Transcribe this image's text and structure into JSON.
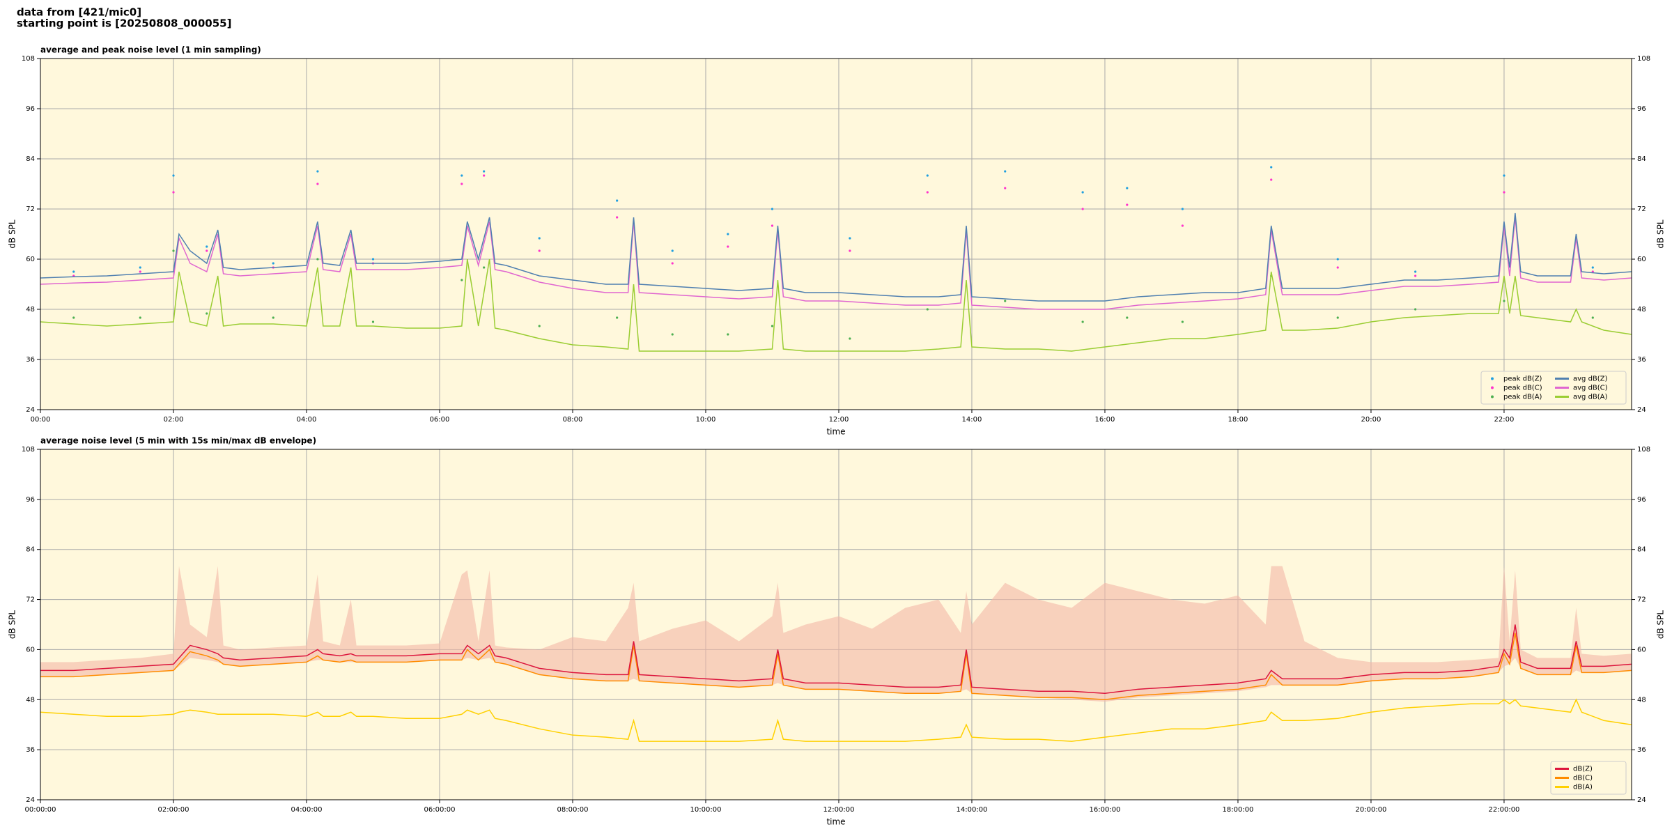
{
  "header": {
    "line1": "data from [421/mic0]",
    "line2": "starting point is [20250808_000055]"
  },
  "chart_data": [
    {
      "type": "line",
      "title": "average and peak noise level (1 min sampling)",
      "xlabel": "time",
      "ylabel": "dB SPL",
      "xlim": [
        "00:00",
        "23:55"
      ],
      "ylim": [
        24,
        108
      ],
      "xticks": [
        "00:00",
        "02:00",
        "04:00",
        "06:00",
        "08:00",
        "10:00",
        "12:00",
        "14:00",
        "16:00",
        "18:00",
        "20:00",
        "22:00"
      ],
      "yticks": [
        24,
        36,
        48,
        60,
        72,
        84,
        96,
        108
      ],
      "grid": true,
      "background": "#fff8dc",
      "legend": "lower right",
      "legend_columns": 2,
      "x": [
        "00:00",
        "00:30",
        "01:00",
        "01:30",
        "02:00",
        "02:05",
        "02:15",
        "02:30",
        "02:40",
        "02:45",
        "03:00",
        "03:30",
        "04:00",
        "04:10",
        "04:15",
        "04:30",
        "04:40",
        "04:45",
        "05:00",
        "05:30",
        "06:00",
        "06:20",
        "06:25",
        "06:35",
        "06:45",
        "06:50",
        "07:00",
        "07:30",
        "08:00",
        "08:30",
        "08:50",
        "08:55",
        "09:00",
        "09:30",
        "10:00",
        "10:30",
        "11:00",
        "11:05",
        "11:10",
        "11:30",
        "12:00",
        "12:30",
        "13:00",
        "13:30",
        "13:50",
        "13:55",
        "14:00",
        "14:30",
        "15:00",
        "15:30",
        "16:00",
        "16:30",
        "17:00",
        "17:30",
        "18:00",
        "18:25",
        "18:30",
        "18:40",
        "19:00",
        "19:30",
        "20:00",
        "20:30",
        "21:00",
        "21:30",
        "21:55",
        "22:00",
        "22:05",
        "22:10",
        "22:15",
        "22:30",
        "23:00",
        "23:05",
        "23:10",
        "23:30",
        "23:55"
      ],
      "series": [
        {
          "name": "peak dB(Z)",
          "kind": "scatter",
          "color": "#1f9fe0",
          "x": [
            "00:30",
            "01:30",
            "02:00",
            "02:30",
            "03:30",
            "04:10",
            "05:00",
            "06:20",
            "06:40",
            "07:30",
            "08:40",
            "09:30",
            "10:20",
            "11:00",
            "12:10",
            "13:20",
            "14:30",
            "15:40",
            "16:20",
            "17:10",
            "18:30",
            "19:30",
            "20:40",
            "22:00",
            "23:20"
          ],
          "values": [
            57,
            58,
            80,
            63,
            59,
            81,
            60,
            80,
            81,
            65,
            74,
            62,
            66,
            72,
            65,
            80,
            81,
            76,
            77,
            72,
            82,
            60,
            57,
            80,
            58
          ]
        },
        {
          "name": "peak dB(C)",
          "kind": "scatter",
          "color": "#ff33cc",
          "x": [
            "00:30",
            "01:30",
            "02:00",
            "02:30",
            "03:30",
            "04:10",
            "05:00",
            "06:20",
            "06:40",
            "07:30",
            "08:40",
            "09:30",
            "10:20",
            "11:00",
            "12:10",
            "13:20",
            "14:30",
            "15:40",
            "16:20",
            "17:10",
            "18:30",
            "19:30",
            "20:40",
            "22:00",
            "23:20"
          ],
          "values": [
            56,
            57,
            76,
            62,
            58,
            78,
            59,
            78,
            80,
            62,
            70,
            59,
            63,
            68,
            62,
            76,
            77,
            72,
            73,
            68,
            79,
            58,
            56,
            76,
            57
          ]
        },
        {
          "name": "peak dB(A)",
          "kind": "scatter",
          "color": "#4caf50",
          "x": [
            "00:30",
            "01:30",
            "02:00",
            "02:30",
            "03:30",
            "04:10",
            "05:00",
            "06:20",
            "06:40",
            "07:30",
            "08:40",
            "09:30",
            "10:20",
            "11:00",
            "12:10",
            "13:20",
            "14:30",
            "15:40",
            "16:20",
            "17:10",
            "18:30",
            "19:30",
            "20:40",
            "22:00",
            "23:20"
          ],
          "values": [
            46,
            46,
            62,
            47,
            46,
            60,
            45,
            55,
            58,
            44,
            46,
            42,
            42,
            44,
            41,
            48,
            50,
            45,
            46,
            45,
            56,
            46,
            48,
            50,
            46
          ]
        },
        {
          "name": "avg dB(Z)",
          "kind": "line",
          "color": "#4f7fb0",
          "values": [
            55.5,
            55.8,
            56,
            56.5,
            57,
            66,
            62,
            59,
            67,
            58,
            57.5,
            58,
            58.5,
            69,
            59,
            58.5,
            67,
            59,
            59,
            59,
            59.5,
            60,
            69,
            60,
            70,
            59,
            58.5,
            56,
            55,
            54,
            54,
            70,
            54,
            53.5,
            53,
            52.5,
            53,
            68,
            53,
            52,
            52,
            51.5,
            51,
            51,
            51.5,
            68,
            51,
            50.5,
            50,
            50,
            50,
            51,
            51.5,
            52,
            52,
            53,
            68,
            53,
            53,
            53,
            54,
            55,
            55,
            55.5,
            56,
            69,
            58,
            71,
            57,
            56,
            56,
            66,
            57,
            56.5,
            57
          ]
        },
        {
          "name": "avg dB(C)",
          "kind": "line",
          "color": "#e066d0",
          "values": [
            54,
            54.3,
            54.5,
            55,
            55.5,
            65,
            59,
            57,
            66,
            56.5,
            56,
            56.5,
            57,
            68,
            57.5,
            57,
            66,
            57.5,
            57.5,
            57.5,
            58,
            58.5,
            68,
            58.5,
            69,
            57.5,
            57,
            54.5,
            53,
            52,
            52,
            69,
            52,
            51.5,
            51,
            50.5,
            51,
            67,
            51,
            50,
            50,
            49.5,
            49,
            49,
            49.5,
            67,
            49,
            48.5,
            48,
            48,
            48,
            49,
            49.5,
            50,
            50.5,
            51.5,
            67,
            51.5,
            51.5,
            51.5,
            52.5,
            53.5,
            53.5,
            54,
            54.5,
            68,
            56,
            70,
            55.5,
            54.5,
            54.5,
            65,
            55.5,
            55,
            55.5
          ]
        },
        {
          "name": "avg dB(A)",
          "kind": "line",
          "color": "#9acd32",
          "values": [
            45,
            44.5,
            44,
            44.5,
            45,
            57,
            45,
            44,
            56,
            44,
            44.5,
            44.5,
            44,
            58,
            44,
            44,
            58,
            44,
            44,
            43.5,
            43.5,
            44,
            60,
            44,
            60,
            43.5,
            43,
            41,
            39.5,
            39,
            38.5,
            54,
            38,
            38,
            38,
            38,
            38.5,
            55,
            38.5,
            38,
            38,
            38,
            38,
            38.5,
            39,
            55,
            39,
            38.5,
            38.5,
            38,
            39,
            40,
            41,
            41,
            42,
            43,
            57,
            43,
            43,
            43.5,
            45,
            46,
            46.5,
            47,
            47,
            56,
            47,
            56,
            46.5,
            46,
            45,
            48,
            45,
            43,
            42
          ]
        }
      ]
    },
    {
      "type": "line",
      "title": "average noise level (5 min with 15s min/max dB envelope)",
      "xlabel": "time",
      "ylabel": "dB SPL",
      "xlim": [
        "00:00:00",
        "23:55:00"
      ],
      "ylim": [
        24,
        108
      ],
      "xticks": [
        "00:00:00",
        "02:00:00",
        "04:00:00",
        "06:00:00",
        "08:00:00",
        "10:00:00",
        "12:00:00",
        "14:00:00",
        "16:00:00",
        "18:00:00",
        "20:00:00",
        "22:00:00"
      ],
      "yticks": [
        24,
        36,
        48,
        60,
        72,
        84,
        96,
        108
      ],
      "grid": true,
      "background": "#fff8dc",
      "legend": "lower right",
      "legend_columns": 1,
      "x": [
        "00:00:00",
        "00:30:00",
        "01:00:00",
        "01:30:00",
        "02:00:00",
        "02:05:00",
        "02:15:00",
        "02:30:00",
        "02:40:00",
        "02:45:00",
        "03:00:00",
        "03:30:00",
        "04:00:00",
        "04:10:00",
        "04:15:00",
        "04:30:00",
        "04:40:00",
        "04:45:00",
        "05:00:00",
        "05:30:00",
        "06:00:00",
        "06:20:00",
        "06:25:00",
        "06:35:00",
        "06:45:00",
        "06:50:00",
        "07:00:00",
        "07:30:00",
        "08:00:00",
        "08:30:00",
        "08:50:00",
        "08:55:00",
        "09:00:00",
        "09:30:00",
        "10:00:00",
        "10:30:00",
        "11:00:00",
        "11:05:00",
        "11:10:00",
        "11:30:00",
        "12:00:00",
        "12:30:00",
        "13:00:00",
        "13:30:00",
        "13:50:00",
        "13:55:00",
        "14:00:00",
        "14:30:00",
        "15:00:00",
        "15:30:00",
        "16:00:00",
        "16:30:00",
        "17:00:00",
        "17:30:00",
        "18:00:00",
        "18:25:00",
        "18:30:00",
        "18:40:00",
        "19:00:00",
        "19:30:00",
        "20:00:00",
        "20:30:00",
        "21:00:00",
        "21:30:00",
        "21:55:00",
        "22:00:00",
        "22:05:00",
        "22:10:00",
        "22:15:00",
        "22:30:00",
        "23:00:00",
        "23:05:00",
        "23:10:00",
        "23:30:00",
        "23:55:00"
      ],
      "envelope": {
        "color": "#f4b8a6",
        "upper": [
          57,
          57,
          57.5,
          58,
          59,
          80,
          66,
          63,
          80,
          61,
          60,
          60.5,
          61,
          78,
          62,
          61,
          72,
          61,
          61,
          61,
          61.5,
          78,
          79,
          62,
          79,
          61,
          60.5,
          60,
          63,
          62,
          70,
          76,
          62,
          65,
          67,
          62,
          68,
          76,
          64,
          66,
          68,
          65,
          70,
          72,
          64,
          74,
          66,
          76,
          72,
          70,
          76,
          74,
          72,
          71,
          73,
          66,
          80,
          80,
          62,
          58,
          57,
          57,
          57,
          57.5,
          58,
          80,
          62,
          79,
          60,
          58,
          58,
          70,
          59,
          58.5,
          59
        ],
        "lower": [
          53.5,
          53.5,
          54,
          54.5,
          55,
          56,
          58,
          57.5,
          57,
          56.5,
          56,
          56.5,
          57,
          57.5,
          57.5,
          57,
          57,
          57,
          57,
          57,
          57.5,
          57.5,
          58,
          57.5,
          58,
          57,
          56.5,
          54,
          53,
          52.5,
          52.5,
          53,
          52.5,
          52,
          51.5,
          51,
          51.5,
          52,
          51.5,
          50.5,
          50.5,
          50,
          49.5,
          49.5,
          50,
          50.5,
          49.5,
          49,
          48.5,
          48,
          47.5,
          48.5,
          49,
          49.5,
          50,
          51,
          51.5,
          51.5,
          51.5,
          51.5,
          52.5,
          53,
          53,
          53.5,
          54.5,
          56,
          56.5,
          58,
          55.5,
          54,
          54,
          55,
          54.5,
          54.5,
          55
        ]
      },
      "series": [
        {
          "name": "dB(Z)",
          "kind": "line",
          "color": "#dc143c",
          "values": [
            55,
            55,
            55.5,
            56,
            56.5,
            58,
            61,
            60,
            59,
            58,
            57.5,
            58,
            58.5,
            60,
            59,
            58.5,
            59,
            58.5,
            58.5,
            58.5,
            59,
            59,
            61,
            59,
            61,
            58.5,
            58,
            55.5,
            54.5,
            54,
            54,
            62,
            54,
            53.5,
            53,
            52.5,
            53,
            60,
            53,
            52,
            52,
            51.5,
            51,
            51,
            51.5,
            60,
            51,
            50.5,
            50,
            50,
            49.5,
            50.5,
            51,
            51.5,
            52,
            53,
            55,
            53,
            53,
            53,
            54,
            54.5,
            54.5,
            55,
            56,
            60,
            58,
            66,
            57,
            55.5,
            55.5,
            62,
            56,
            56,
            56.5
          ]
        },
        {
          "name": "dB(C)",
          "kind": "line",
          "color": "#ff8c00",
          "values": [
            53.5,
            53.5,
            54,
            54.5,
            55,
            56.5,
            59.5,
            58.5,
            57.5,
            56.5,
            56,
            56.5,
            57,
            58.5,
            57.5,
            57,
            57.5,
            57,
            57,
            57,
            57.5,
            57.5,
            60,
            57.5,
            60,
            57,
            56.5,
            54,
            53,
            52.5,
            52.5,
            61,
            52.5,
            52,
            51.5,
            51,
            51.5,
            59,
            51.5,
            50.5,
            50.5,
            50,
            49.5,
            49.5,
            50,
            59,
            49.5,
            49,
            48.5,
            48.5,
            48,
            49,
            49.5,
            50,
            50.5,
            51.5,
            54,
            51.5,
            51.5,
            51.5,
            52.5,
            53,
            53,
            53.5,
            54.5,
            59,
            56.5,
            64,
            55.5,
            54,
            54,
            61,
            54.5,
            54.5,
            55
          ]
        },
        {
          "name": "dB(A)",
          "kind": "line",
          "color": "#ffd000",
          "values": [
            45,
            44.5,
            44,
            44,
            44.5,
            45,
            45.5,
            45,
            44.5,
            44.5,
            44.5,
            44.5,
            44,
            45,
            44,
            44,
            45,
            44,
            44,
            43.5,
            43.5,
            44.5,
            45.5,
            44.5,
            45.5,
            43.5,
            43,
            41,
            39.5,
            39,
            38.5,
            43,
            38,
            38,
            38,
            38,
            38.5,
            43,
            38.5,
            38,
            38,
            38,
            38,
            38.5,
            39,
            42,
            39,
            38.5,
            38.5,
            38,
            39,
            40,
            41,
            41,
            42,
            43,
            45,
            43,
            43,
            43.5,
            45,
            46,
            46.5,
            47,
            47,
            48,
            47,
            48,
            46.5,
            46,
            45,
            48,
            45,
            43,
            42
          ]
        }
      ]
    }
  ]
}
